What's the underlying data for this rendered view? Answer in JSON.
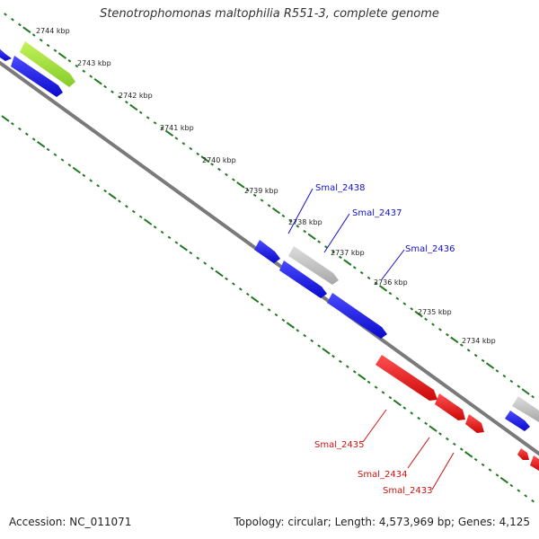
{
  "title": "Stenotrophomonas maltophilia R551-3, complete genome",
  "accession": "Accession: NC_011071",
  "summary": "Topology: circular; Length: 4,573,969 bp; Genes: 4,125",
  "colors": {
    "backbone": "#777777",
    "tick": "#227722",
    "forward_gene": "#1010dd",
    "reverse_gene": "#dd1010",
    "highlight_gene": "#99dd33",
    "other_gene": "#bbbbbb",
    "forward_label": "#1111cc",
    "reverse_label": "#cc1111"
  },
  "ticks": [
    "2744 kbp",
    "2743 kbp",
    "2742 kbp",
    "2741 kbp",
    "2740 kbp",
    "2739 kbp",
    "2738 kbp",
    "2737 kbp",
    "2736 kbp",
    "2735 kbp",
    "2734 kbp"
  ],
  "gene_labels": [
    {
      "text": "Smal_2438",
      "strand": "forward"
    },
    {
      "text": "Smal_2437",
      "strand": "forward"
    },
    {
      "text": "Smal_2436",
      "strand": "forward"
    },
    {
      "text": "Smal_2435",
      "strand": "reverse"
    },
    {
      "text": "Smal_2434",
      "strand": "reverse"
    },
    {
      "text": "Smal_2433",
      "strand": "reverse"
    }
  ]
}
